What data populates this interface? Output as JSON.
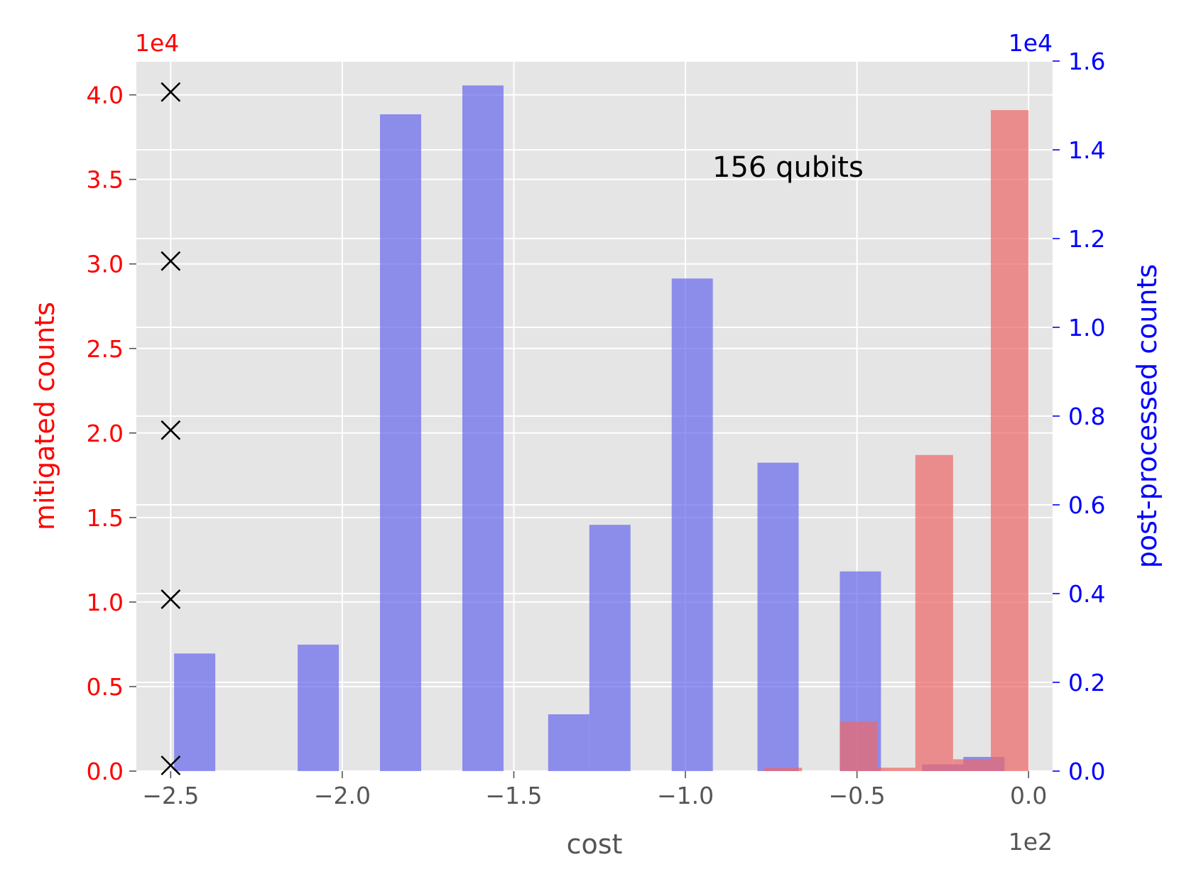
{
  "chart_data": {
    "type": "bar",
    "title": "",
    "annotation": "156 qubits",
    "xlabel": "cost",
    "x_multiplier": "1e2",
    "xlim": [
      -2.6,
      0.07
    ],
    "xticks": [
      -2.5,
      -2.0,
      -1.5,
      -1.0,
      -0.5,
      0.0
    ],
    "xtick_labels": [
      "−2.5",
      "−2.0",
      "−1.5",
      "−1.0",
      "−0.5",
      "0.0"
    ],
    "left_axis": {
      "label": "mitigated counts",
      "multiplier": "1e4",
      "color": "#ff0000",
      "ylim": [
        0,
        4.2
      ],
      "ticks": [
        0.0,
        0.5,
        1.0,
        1.5,
        2.0,
        2.5,
        3.0,
        3.5,
        4.0
      ],
      "tick_labels": [
        "0.0",
        "0.5",
        "1.0",
        "1.5",
        "2.0",
        "2.5",
        "3.0",
        "3.5",
        "4.0"
      ]
    },
    "right_axis": {
      "label": "post-processed counts",
      "multiplier": "1e4",
      "color": "#0000ff",
      "ylim": [
        0,
        1.6
      ],
      "ticks": [
        0.0,
        0.2,
        0.4,
        0.6,
        0.8,
        1.0,
        1.2,
        1.4,
        1.6
      ],
      "tick_labels": [
        "0.0",
        "0.2",
        "0.4",
        "0.6",
        "0.8",
        "1.0",
        "1.2",
        "1.4",
        "1.6"
      ]
    },
    "grid": true,
    "series": [
      {
        "axis": "right",
        "color": "#6666ee",
        "bars": [
          {
            "x0": -2.49,
            "x1": -2.37,
            "value": 0.265
          },
          {
            "x0": -2.13,
            "x1": -2.01,
            "value": 0.285
          },
          {
            "x0": -1.89,
            "x1": -1.77,
            "value": 1.48
          },
          {
            "x0": -1.65,
            "x1": -1.53,
            "value": 1.545
          },
          {
            "x0": -1.4,
            "x1": -1.28,
            "value": 0.128
          },
          {
            "x0": -1.28,
            "x1": -1.16,
            "value": 0.555
          },
          {
            "x0": -1.04,
            "x1": -0.92,
            "value": 1.11
          },
          {
            "x0": -0.79,
            "x1": -0.67,
            "value": 0.695
          },
          {
            "x0": -0.55,
            "x1": -0.43,
            "value": 0.45
          },
          {
            "x0": -0.31,
            "x1": -0.19,
            "value": 0.015
          },
          {
            "x0": -0.19,
            "x1": -0.07,
            "value": 0.032
          }
        ]
      },
      {
        "axis": "left",
        "color": "#ee6666",
        "bars": [
          {
            "x0": -0.77,
            "x1": -0.66,
            "value": 0.02
          },
          {
            "x0": -0.55,
            "x1": -0.44,
            "value": 0.29
          },
          {
            "x0": -0.44,
            "x1": -0.33,
            "value": 0.02
          },
          {
            "x0": -0.33,
            "x1": -0.22,
            "value": 1.87
          },
          {
            "x0": -0.22,
            "x1": -0.11,
            "value": 0.07
          },
          {
            "x0": -0.11,
            "x1": 0.0,
            "value": 3.91
          }
        ]
      }
    ],
    "markers": {
      "symbol": "x",
      "color": "#000000",
      "x": -2.5,
      "y_left": [
        0.0,
        1.0,
        2.0,
        3.0,
        4.0
      ]
    }
  }
}
